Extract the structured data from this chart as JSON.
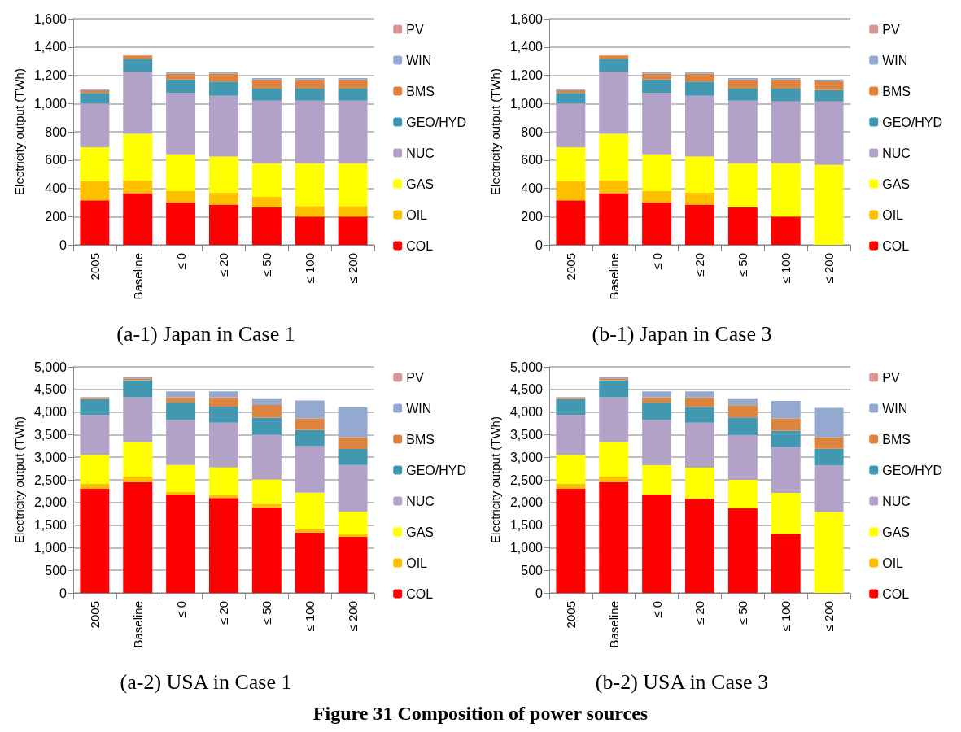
{
  "chart_data": [
    {
      "type": "bar",
      "title": "(a-1) Japan in Case 1",
      "ylabel": "Electricity output (TWh)",
      "stacked": true,
      "grid": "y",
      "legend": "right",
      "categories": [
        "2005",
        "Baseline",
        "≤ 0",
        "≤ 20",
        "≤ 50",
        "≤ 100",
        "≤ 200"
      ],
      "ylim": [
        0,
        1600
      ],
      "yticks": [
        0,
        200,
        400,
        600,
        800,
        {
          "value": 1000,
          "label": "1,000"
        },
        {
          "value": 1200,
          "label": "1,200"
        },
        {
          "value": 1400,
          "label": "1,400"
        },
        {
          "value": 1600,
          "label": "1,600"
        }
      ],
      "series": [
        {
          "name": "COL",
          "color": "#ff0000",
          "values": [
            315,
            365,
            300,
            285,
            265,
            200,
            200
          ]
        },
        {
          "name": "OIL",
          "color": "#ffc000",
          "values": [
            135,
            90,
            80,
            85,
            75,
            75,
            75
          ]
        },
        {
          "name": "GAS",
          "color": "#ffff00",
          "values": [
            240,
            330,
            260,
            255,
            235,
            300,
            300
          ]
        },
        {
          "name": "NUC",
          "color": "#b3a2c7",
          "values": [
            310,
            440,
            435,
            430,
            445,
            445,
            445
          ]
        },
        {
          "name": "GEO/HYD",
          "color": "#4298b0",
          "values": [
            75,
            90,
            95,
            100,
            85,
            85,
            85
          ]
        },
        {
          "name": "BMS",
          "color": "#dd8340",
          "values": [
            20,
            25,
            40,
            55,
            65,
            65,
            65
          ]
        },
        {
          "name": "WIN",
          "color": "#93a9d0",
          "values": [
            10,
            0,
            10,
            10,
            10,
            10,
            10
          ]
        },
        {
          "name": "PV",
          "color": "#d99694",
          "values": [
            0,
            0,
            0,
            0,
            0,
            0,
            0
          ]
        }
      ]
    },
    {
      "type": "bar",
      "title": "(b-1) Japan in Case 3",
      "ylabel": "Electricity output (TWh)",
      "stacked": true,
      "grid": "y",
      "legend": "right",
      "categories": [
        "2005",
        "Baseline",
        "≤ 0",
        "≤ 20",
        "≤ 50",
        "≤ 100",
        "≤ 200"
      ],
      "ylim": [
        0,
        1600
      ],
      "yticks": [
        0,
        200,
        400,
        600,
        800,
        {
          "value": 1000,
          "label": "1,000"
        },
        {
          "value": 1200,
          "label": "1,200"
        },
        {
          "value": 1400,
          "label": "1,400"
        },
        {
          "value": 1600,
          "label": "1,600"
        }
      ],
      "series": [
        {
          "name": "COL",
          "color": "#ff0000",
          "values": [
            315,
            365,
            300,
            285,
            265,
            200,
            0
          ]
        },
        {
          "name": "OIL",
          "color": "#ffc000",
          "values": [
            135,
            90,
            80,
            85,
            0,
            0,
            0
          ]
        },
        {
          "name": "GAS",
          "color": "#ffff00",
          "values": [
            240,
            330,
            260,
            255,
            310,
            375,
            565
          ]
        },
        {
          "name": "NUC",
          "color": "#b3a2c7",
          "values": [
            310,
            440,
            435,
            430,
            445,
            440,
            450
          ]
        },
        {
          "name": "GEO/HYD",
          "color": "#4298b0",
          "values": [
            75,
            90,
            95,
            100,
            85,
            90,
            80
          ]
        },
        {
          "name": "BMS",
          "color": "#dd8340",
          "values": [
            20,
            25,
            40,
            55,
            65,
            65,
            65
          ]
        },
        {
          "name": "WIN",
          "color": "#93a9d0",
          "values": [
            10,
            0,
            10,
            10,
            10,
            10,
            10
          ]
        },
        {
          "name": "PV",
          "color": "#d99694",
          "values": [
            0,
            0,
            0,
            0,
            0,
            0,
            0
          ]
        }
      ]
    },
    {
      "type": "bar",
      "title": "(a-2) USA in Case 1",
      "ylabel": "Electricity output (TWh)",
      "stacked": true,
      "grid": "y",
      "legend": "right",
      "categories": [
        "2005",
        "Baseline",
        "≤ 0",
        "≤ 20",
        "≤ 50",
        "≤ 100",
        "≤ 200"
      ],
      "ylim": [
        0,
        5000
      ],
      "yticks": [
        0,
        500,
        {
          "value": 1000,
          "label": "1,000"
        },
        {
          "value": 1500,
          "label": "1,500"
        },
        {
          "value": 2000,
          "label": "2,000"
        },
        {
          "value": 2500,
          "label": "2,500"
        },
        {
          "value": 3000,
          "label": "3,000"
        },
        {
          "value": 3500,
          "label": "3,500"
        },
        {
          "value": 4000,
          "label": "4,000"
        },
        {
          "value": 4500,
          "label": "4,500"
        },
        {
          "value": 5000,
          "label": "5,000"
        }
      ],
      "series": [
        {
          "name": "COL",
          "color": "#ff0000",
          "values": [
            2300,
            2450,
            2175,
            2100,
            1895,
            1335,
            1240
          ]
        },
        {
          "name": "OIL",
          "color": "#ffc000",
          "values": [
            120,
            120,
            55,
            70,
            75,
            75,
            55
          ]
        },
        {
          "name": "GAS",
          "color": "#ffff00",
          "values": [
            635,
            765,
            600,
            605,
            540,
            805,
            505
          ]
        },
        {
          "name": "NUC",
          "color": "#b3a2c7",
          "values": [
            880,
            990,
            990,
            990,
            990,
            1030,
            1030
          ]
        },
        {
          "name": "GEO/HYD",
          "color": "#4298b0",
          "values": [
            345,
            380,
            390,
            355,
            375,
            355,
            355
          ]
        },
        {
          "name": "BMS",
          "color": "#dd8340",
          "values": [
            30,
            40,
            115,
            205,
            280,
            260,
            260
          ]
        },
        {
          "name": "WIN",
          "color": "#93a9d0",
          "values": [
            20,
            30,
            130,
            130,
            150,
            395,
            655
          ]
        },
        {
          "name": "PV",
          "color": "#d99694",
          "values": [
            0,
            0,
            0,
            0,
            0,
            0,
            0
          ]
        }
      ]
    },
    {
      "type": "bar",
      "title": "(b-2) USA in Case 3",
      "ylabel": "Electricity output (TWh)",
      "stacked": true,
      "grid": "y",
      "legend": "right",
      "categories": [
        "2005",
        "Baseline",
        "≤ 0",
        "≤ 20",
        "≤ 50",
        "≤ 100",
        "≤ 200"
      ],
      "ylim": [
        0,
        5000
      ],
      "yticks": [
        0,
        500,
        {
          "value": 1000,
          "label": "1,000"
        },
        {
          "value": 1500,
          "label": "1,500"
        },
        {
          "value": 2000,
          "label": "2,000"
        },
        {
          "value": 2500,
          "label": "2,500"
        },
        {
          "value": 3000,
          "label": "3,000"
        },
        {
          "value": 3500,
          "label": "3,500"
        },
        {
          "value": 4000,
          "label": "4,000"
        },
        {
          "value": 4500,
          "label": "4,500"
        },
        {
          "value": 5000,
          "label": "5,000"
        }
      ],
      "annotations": [
        "Figure 31 Composition of power sources"
      ],
      "series": [
        {
          "name": "COL",
          "color": "#ff0000",
          "values": [
            2300,
            2450,
            2175,
            2080,
            1870,
            1310,
            0
          ]
        },
        {
          "name": "OIL",
          "color": "#ffc000",
          "values": [
            120,
            120,
            0,
            0,
            0,
            0,
            0
          ]
        },
        {
          "name": "GAS",
          "color": "#ffff00",
          "values": [
            635,
            765,
            650,
            690,
            630,
            900,
            1790
          ]
        },
        {
          "name": "NUC",
          "color": "#b3a2c7",
          "values": [
            880,
            990,
            995,
            995,
            995,
            1015,
            1035
          ]
        },
        {
          "name": "GEO/HYD",
          "color": "#4298b0",
          "values": [
            345,
            380,
            385,
            345,
            385,
            365,
            365
          ]
        },
        {
          "name": "BMS",
          "color": "#dd8340",
          "values": [
            30,
            40,
            115,
            210,
            270,
            270,
            250
          ]
        },
        {
          "name": "WIN",
          "color": "#93a9d0",
          "values": [
            20,
            30,
            135,
            135,
            155,
            385,
            650
          ]
        },
        {
          "name": "PV",
          "color": "#d99694",
          "values": [
            0,
            0,
            0,
            0,
            0,
            0,
            0
          ]
        }
      ]
    }
  ]
}
